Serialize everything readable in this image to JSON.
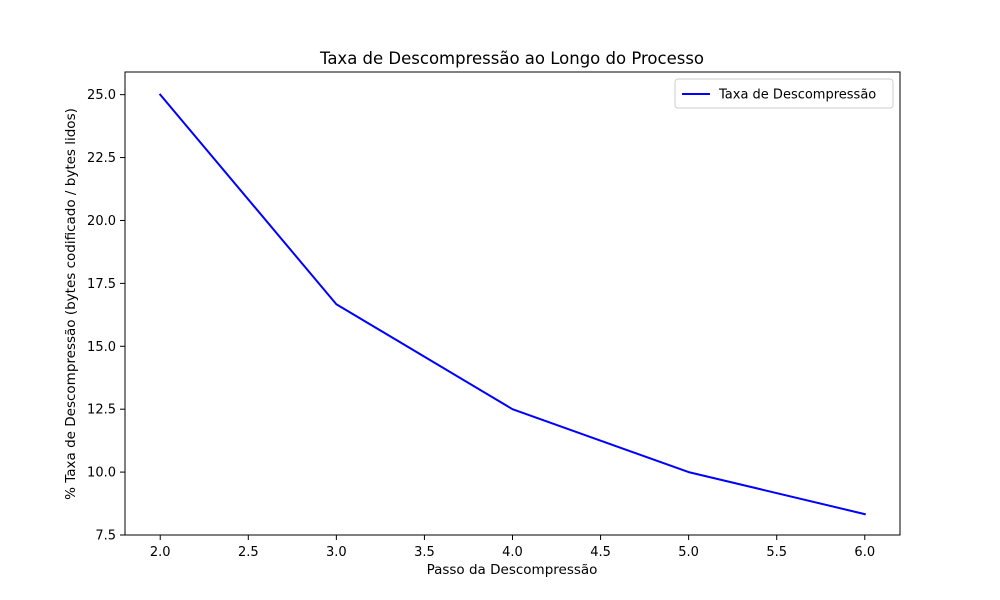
{
  "chart_data": {
    "type": "line",
    "title": "Taxa de Descompressão ao Longo do Processo",
    "xlabel": "Passo da Descompressão",
    "ylabel": "% Taxa de Descompressão (bytes codificado / bytes lidos)",
    "xlim": [
      1.8,
      6.2
    ],
    "ylim": [
      7.5,
      25.9
    ],
    "xticks": [
      2.0,
      2.5,
      3.0,
      3.5,
      4.0,
      4.5,
      5.0,
      5.5,
      6.0
    ],
    "xtick_labels": [
      "2.0",
      "2.5",
      "3.0",
      "3.5",
      "4.0",
      "4.5",
      "5.0",
      "5.5",
      "6.0"
    ],
    "yticks": [
      7.5,
      10.0,
      12.5,
      15.0,
      17.5,
      20.0,
      22.5,
      25.0
    ],
    "ytick_labels": [
      "7.5",
      "10.0",
      "12.5",
      "15.0",
      "17.5",
      "20.0",
      "22.5",
      "25.0"
    ],
    "grid": false,
    "legend_position": "top-right",
    "series": [
      {
        "name": "Taxa de Descompressão",
        "color": "#0000ff",
        "x": [
          2,
          3,
          4,
          5,
          6
        ],
        "y": [
          25.0,
          16.67,
          12.5,
          10.0,
          8.33
        ]
      }
    ]
  }
}
